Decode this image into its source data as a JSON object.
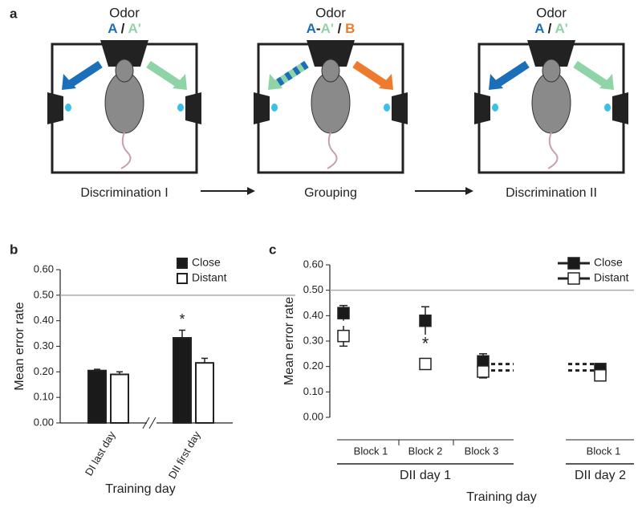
{
  "panel_a": {
    "label": "a",
    "stages": [
      {
        "odor": "Odor",
        "cue": [
          {
            "text": "A",
            "color": "#1a6fb8"
          },
          {
            "text": " / ",
            "color": "#222222"
          },
          {
            "text": "A'",
            "color": "#8fd4a6"
          }
        ],
        "name": "Discrimination I"
      },
      {
        "odor": "Odor",
        "cue": [
          {
            "text": "A",
            "color": "#1a6fb8"
          },
          {
            "text": "-",
            "color": "#222222"
          },
          {
            "text": "A'",
            "color": "#8fd4a6"
          },
          {
            "text": " / ",
            "color": "#222222"
          },
          {
            "text": "B",
            "color": "#ee7a2e"
          }
        ],
        "name": "Grouping"
      },
      {
        "odor": "Odor",
        "cue": [
          {
            "text": "A",
            "color": "#1a6fb8"
          },
          {
            "text": " / ",
            "color": "#222222"
          },
          {
            "text": "A'",
            "color": "#8fd4a6"
          }
        ],
        "name": "Discrimination II"
      }
    ]
  },
  "chart_data": [
    {
      "type": "bar",
      "panel": "b",
      "ylabel": "Mean error rate",
      "xlabel": "Training day",
      "categories": [
        "DI last day",
        "DII first day"
      ],
      "series": [
        {
          "name": "Close",
          "color": "#1a1a1a",
          "values": [
            0.205,
            0.333
          ],
          "errors": [
            0.005,
            0.03
          ]
        },
        {
          "name": "Distant",
          "color": "#ffffff",
          "values": [
            0.19,
            0.235
          ],
          "errors": [
            0.01,
            0.018
          ]
        }
      ],
      "ylim": [
        0,
        0.6
      ],
      "yticks": [
        {
          "value": 0,
          "label": "0.00"
        },
        {
          "value": 0.1,
          "label": "0.10"
        },
        {
          "value": 0.2,
          "label": "0.20"
        },
        {
          "value": 0.3,
          "label": "0.30"
        },
        {
          "value": 0.4,
          "label": "0.40"
        },
        {
          "value": 0.5,
          "label": "0.50"
        },
        {
          "value": 0.6,
          "label": "0.60"
        }
      ],
      "reference_line": 0.5,
      "annotation": "*"
    },
    {
      "type": "line",
      "panel": "c",
      "ylabel": "Mean error rate",
      "xlabel": "Training day",
      "categories": [
        "Block 1",
        "Block 2",
        "Block 3",
        null,
        "Block 1"
      ],
      "group_labels": [
        "DII day 1",
        "DII day 2"
      ],
      "series": [
        {
          "name": "Close",
          "color": "#1a1a1a",
          "values": [
            0.41,
            0.38,
            0.22,
            null,
            0.19
          ],
          "errors": [
            0.03,
            0.055,
            0.03,
            null,
            null
          ]
        },
        {
          "name": "Distant",
          "color": "#ffffff",
          "values": [
            0.32,
            0.21,
            0.18,
            null,
            0.165
          ],
          "errors": [
            0.04,
            0.01,
            0.025,
            null,
            null
          ]
        }
      ],
      "ylim": [
        0,
        0.6
      ],
      "yticks": [
        {
          "value": 0,
          "label": "0.00"
        },
        {
          "value": 0.1,
          "label": "0.10"
        },
        {
          "value": 0.2,
          "label": "0.20"
        },
        {
          "value": 0.3,
          "label": "0.30"
        },
        {
          "value": 0.4,
          "label": "0.40"
        },
        {
          "value": 0.5,
          "label": "0.50"
        },
        {
          "value": 0.6,
          "label": "0.60"
        }
      ],
      "reference_line": 0.5,
      "annotation": "*"
    }
  ]
}
